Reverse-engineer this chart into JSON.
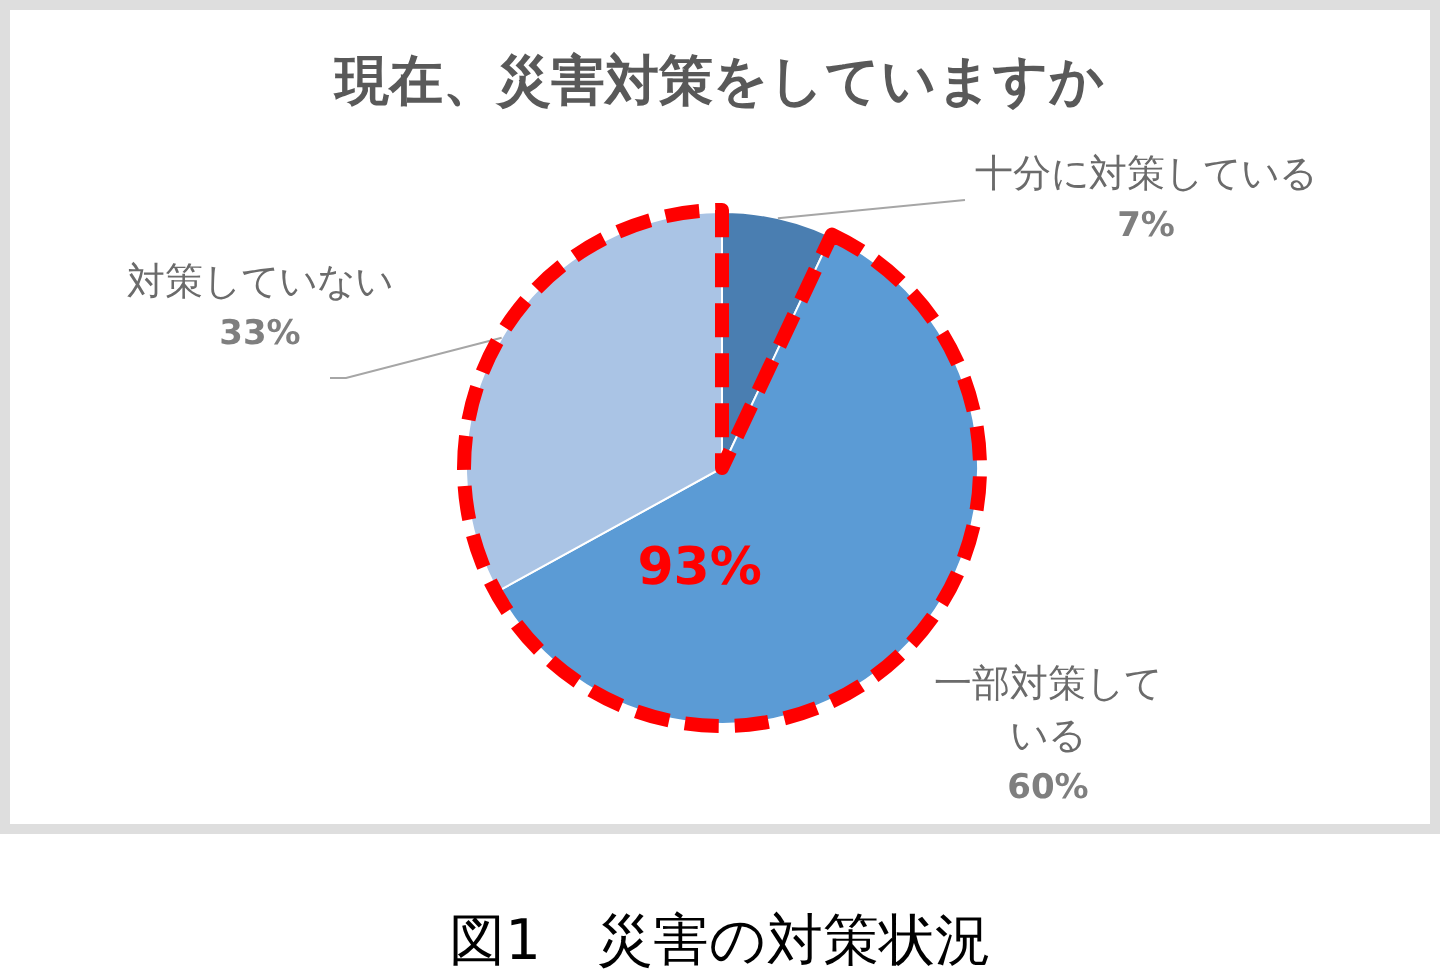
{
  "chart_data": {
    "type": "pie",
    "title": "現在、災害対策をしていますか",
    "categories": [
      "十分に対策している",
      "一部対策している",
      "対策していない"
    ],
    "values": [
      7,
      60,
      33
    ],
    "colors": [
      "#4a7eb1",
      "#5b9bd5",
      "#aac4e5"
    ],
    "value_labels": [
      "7%",
      "60%",
      "33%"
    ],
    "annotations": [
      "93%",
      "図1　災害の対策状況"
    ]
  }
}
